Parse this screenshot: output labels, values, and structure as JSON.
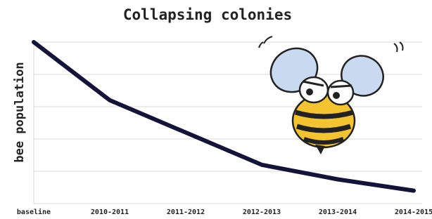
{
  "chart_data": {
    "type": "line",
    "title": "Collapsing colonies",
    "y_label": "bee population",
    "categories": [
      "baseline",
      "2010-2011",
      "2011-2012",
      "2012-2013",
      "2013-2014",
      "2014-2015"
    ],
    "values": [
      100,
      64,
      44,
      24,
      15,
      8
    ],
    "color": "#14143a",
    "ylim": [
      0,
      100
    ],
    "yticks": [
      0,
      20,
      40,
      60,
      80,
      100
    ],
    "grid": true
  }
}
